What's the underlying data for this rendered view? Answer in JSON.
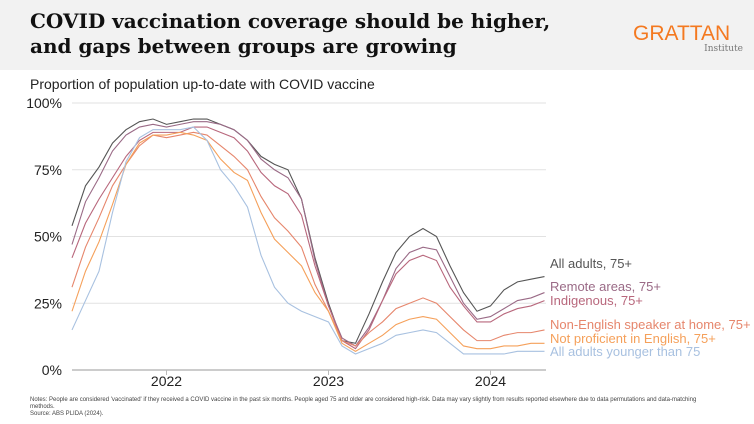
{
  "header": {
    "title": "COVID vaccination coverage should be higher, and gaps between groups are growing",
    "logo_main": "GRATTAN",
    "logo_sub": "Institute",
    "logo_color": "#f47920"
  },
  "notes": {
    "text": "Notes: People are considered 'vaccinated' if they received a COVID vaccine in the past six months. People aged 75 and older are considered high-risk. Data may vary slightly from results reported elsewhere due to data permutations and data-matching methods.",
    "source": "Source: ABS PLIDA (2024)."
  },
  "chart_data": {
    "type": "line",
    "title": "",
    "subtitle": "Proportion of population up-to-date with COVID vaccine",
    "xlabel": "",
    "ylabel": "",
    "ylim": [
      0,
      100
    ],
    "yticks": [
      0,
      25,
      50,
      75,
      100
    ],
    "ytick_labels": [
      "0%",
      "25%",
      "50%",
      "75%",
      "100%"
    ],
    "xticks": [
      "2022-01",
      "2023-01",
      "2024-01"
    ],
    "xtick_labels": [
      "2022",
      "2023",
      "2024"
    ],
    "grid": "horizontal",
    "legend": "direct labels at line ends (right)",
    "x": [
      "2021-06",
      "2021-07",
      "2021-08",
      "2021-09",
      "2021-10",
      "2021-11",
      "2021-12",
      "2022-01",
      "2022-02",
      "2022-03",
      "2022-04",
      "2022-05",
      "2022-06",
      "2022-07",
      "2022-08",
      "2022-09",
      "2022-10",
      "2022-11",
      "2022-12",
      "2023-01",
      "2023-02",
      "2023-03",
      "2023-04",
      "2023-05",
      "2023-06",
      "2023-07",
      "2023-08",
      "2023-09",
      "2023-10",
      "2023-11",
      "2023-12",
      "2024-01",
      "2024-02",
      "2024-03",
      "2024-04",
      "2024-05"
    ],
    "series": [
      {
        "name": "All adults, 75+",
        "color": "#555555",
        "values": [
          54,
          69,
          76,
          85,
          90,
          93,
          94,
          92,
          93,
          94,
          94,
          92,
          90,
          86,
          80,
          77,
          75,
          64,
          42,
          25,
          11,
          10,
          21,
          33,
          44,
          50,
          53,
          50,
          39,
          29,
          22,
          24,
          30,
          33,
          34,
          35
        ]
      },
      {
        "name": "Remote areas, 75+",
        "color": "#9a6a86",
        "values": [
          47,
          63,
          72,
          82,
          88,
          91,
          92,
          91,
          92,
          93,
          93,
          92,
          90,
          86,
          79,
          75,
          72,
          64,
          41,
          24,
          12,
          9,
          16,
          26,
          38,
          44,
          46,
          45,
          35,
          25,
          19,
          20,
          23,
          26,
          27,
          29
        ]
      },
      {
        "name": "Indigenous, 75+",
        "color": "#b8677c",
        "values": [
          42,
          55,
          64,
          72,
          80,
          86,
          89,
          89,
          89,
          91,
          91,
          89,
          87,
          82,
          74,
          69,
          66,
          58,
          39,
          24,
          11,
          8,
          15,
          26,
          36,
          41,
          43,
          41,
          31,
          24,
          18,
          18,
          21,
          23,
          24,
          26
        ]
      },
      {
        "name": "Non-English speaker at home, 75+",
        "color": "#e6866c",
        "values": [
          31,
          46,
          57,
          69,
          77,
          84,
          88,
          87,
          88,
          89,
          88,
          84,
          80,
          75,
          65,
          57,
          52,
          46,
          32,
          22,
          11,
          9,
          14,
          18,
          23,
          25,
          27,
          25,
          20,
          15,
          11,
          11,
          13,
          14,
          14,
          15
        ]
      },
      {
        "name": "Not proficient in English, 75+",
        "color": "#f5a05a",
        "values": [
          22,
          37,
          48,
          62,
          77,
          85,
          88,
          88,
          89,
          88,
          86,
          79,
          74,
          71,
          59,
          49,
          44,
          39,
          29,
          22,
          10,
          7,
          10,
          13,
          17,
          19,
          20,
          19,
          14,
          9,
          8,
          8,
          9,
          9,
          10,
          10
        ]
      },
      {
        "name": "All adults younger than 75",
        "color": "#a8c1e0",
        "values": [
          15,
          26,
          37,
          59,
          78,
          87,
          90,
          90,
          90,
          91,
          86,
          75,
          69,
          61,
          43,
          31,
          25,
          22,
          20,
          18,
          9,
          6,
          8,
          10,
          13,
          14,
          15,
          14,
          10,
          6,
          6,
          6,
          6,
          7,
          7,
          7
        ]
      }
    ]
  }
}
